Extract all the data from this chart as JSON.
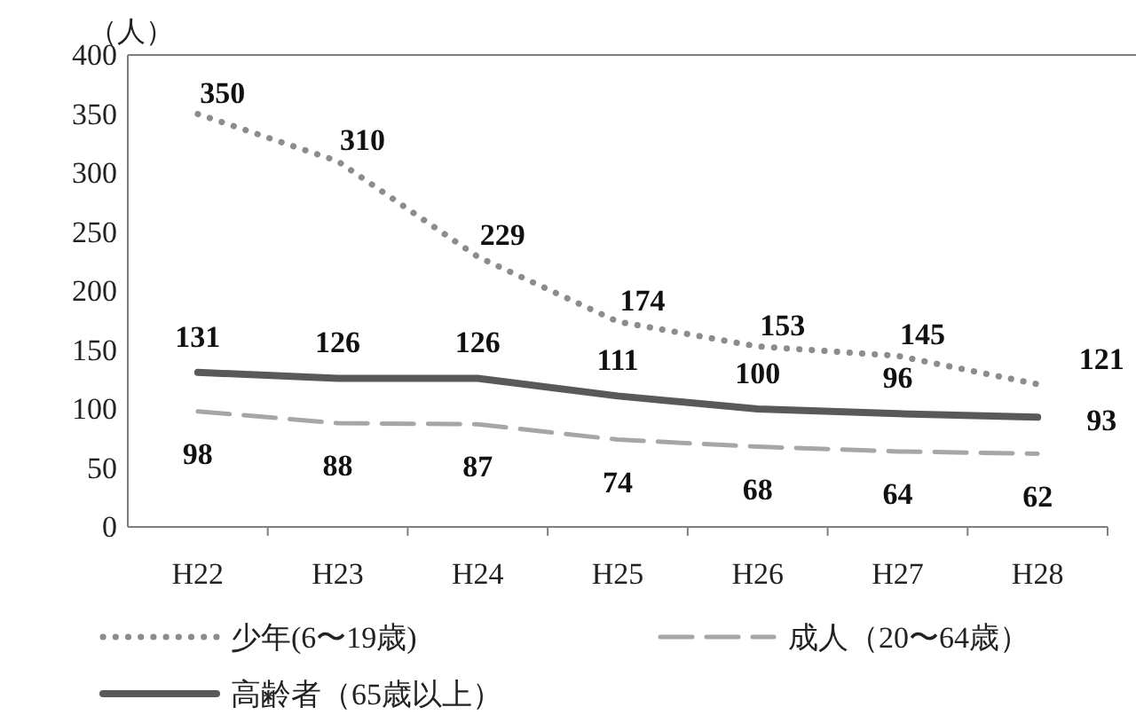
{
  "chart_data": {
    "type": "line",
    "ylabel": "（人）",
    "categories": [
      "H22",
      "H23",
      "H24",
      "H25",
      "H26",
      "H27",
      "H28"
    ],
    "series": [
      {
        "name": "少年(6〜19歳)",
        "color": "#8c8c8c",
        "line_style": "dotted",
        "values": [
          350,
          310,
          229,
          174,
          153,
          145,
          121
        ]
      },
      {
        "name": "成人（20〜64歳）",
        "color": "#a6a6a6",
        "line_style": "dashed",
        "values": [
          98,
          88,
          87,
          74,
          68,
          64,
          62
        ]
      },
      {
        "name": "高齢者（65歳以上）",
        "color": "#595959",
        "line_style": "solid",
        "values": [
          131,
          126,
          126,
          111,
          100,
          96,
          93
        ]
      }
    ],
    "ylim": [
      0,
      400
    ],
    "yticks": [
      0,
      50,
      100,
      150,
      200,
      250,
      300,
      350,
      400
    ],
    "data_labels": true,
    "grid": false,
    "legend": "bottom",
    "marker": "none"
  }
}
